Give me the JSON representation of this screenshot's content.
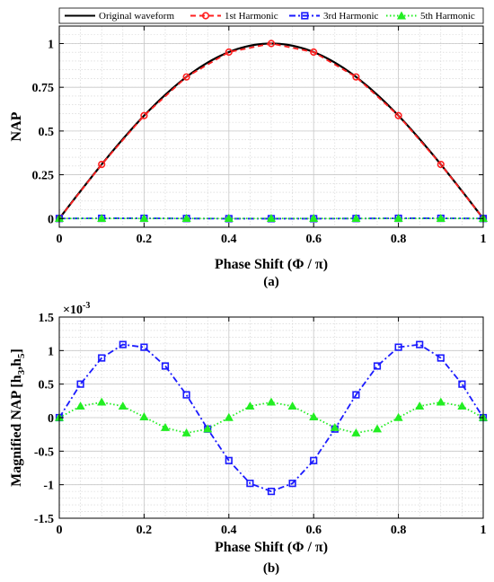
{
  "chart_data": [
    {
      "id": "a",
      "type": "line",
      "panel_label": "(a)",
      "xlabel": "Phase Shift (Φ / π)",
      "ylabel": "NAP",
      "xlim": [
        0,
        1
      ],
      "ylim": [
        -0.05,
        1.1
      ],
      "xticks": [
        0,
        0.2,
        0.4,
        0.6,
        0.8,
        1
      ],
      "xtick_labels": [
        "0",
        "0.2",
        "0.4",
        "0.6",
        "0.8",
        "1"
      ],
      "yticks": [
        0,
        0.25,
        0.5,
        0.75,
        1
      ],
      "ytick_labels": [
        "0",
        "0.25",
        "0.5",
        "0.75",
        "1"
      ],
      "grid": true,
      "legend": {
        "placement": "top",
        "entries": [
          "Original waveform",
          "1st Harmonic",
          "3rd Harmonic",
          "5th Harmonic"
        ]
      },
      "series": [
        {
          "name": "Original waveform",
          "color": "#000000",
          "line": "solid",
          "marker": "none",
          "x": [
            0,
            0.05,
            0.1,
            0.15,
            0.2,
            0.25,
            0.3,
            0.35,
            0.4,
            0.45,
            0.5,
            0.55,
            0.6,
            0.65,
            0.7,
            0.75,
            0.8,
            0.85,
            0.9,
            0.95,
            1
          ],
          "y": [
            0,
            0.156,
            0.309,
            0.454,
            0.588,
            0.707,
            0.809,
            0.891,
            0.951,
            0.988,
            1,
            0.988,
            0.951,
            0.891,
            0.809,
            0.707,
            0.588,
            0.454,
            0.309,
            0.156,
            0
          ]
        },
        {
          "name": "1st Harmonic",
          "color": "#ff2020",
          "line": "dashed",
          "marker": "circle",
          "x": [
            0,
            0.1,
            0.2,
            0.3,
            0.4,
            0.5,
            0.6,
            0.7,
            0.8,
            0.9,
            1
          ],
          "y": [
            0,
            0.309,
            0.588,
            0.809,
            0.951,
            1,
            0.951,
            0.809,
            0.588,
            0.309,
            0
          ]
        },
        {
          "name": "3rd Harmonic",
          "color": "#1a1aff",
          "line": "dashdot",
          "marker": "square",
          "x": [
            0,
            0.1,
            0.2,
            0.3,
            0.4,
            0.5,
            0.6,
            0.7,
            0.8,
            0.9,
            1
          ],
          "y": [
            0,
            0.001,
            0.001,
            0,
            -0.001,
            -0.001,
            -0.001,
            0,
            0.001,
            0.001,
            0
          ]
        },
        {
          "name": "5th Harmonic",
          "color": "#22ee22",
          "line": "dotted",
          "marker": "triangle",
          "x": [
            0,
            0.1,
            0.2,
            0.3,
            0.4,
            0.5,
            0.6,
            0.7,
            0.8,
            0.9,
            1
          ],
          "y": [
            0,
            0,
            0,
            0,
            0,
            0,
            0,
            0,
            0,
            0,
            0
          ]
        }
      ]
    },
    {
      "id": "b",
      "type": "line",
      "panel_label": "(b)",
      "xlabel": "Phase Shift (Φ / π)",
      "ylabel": "Magnified NAP [h3,h5]",
      "y_multiplier": "×10^-3",
      "xlim": [
        0,
        1
      ],
      "ylim": [
        -1.5,
        1.5
      ],
      "xticks": [
        0,
        0.2,
        0.4,
        0.6,
        0.8,
        1
      ],
      "xtick_labels": [
        "0",
        "0.2",
        "0.4",
        "0.6",
        "0.8",
        "1"
      ],
      "yticks": [
        -1.5,
        -1,
        -0.5,
        0,
        0.5,
        1,
        1.5
      ],
      "ytick_labels": [
        "-1.5",
        "-1",
        "-0.5",
        "0",
        "0.5",
        "1",
        "1.5"
      ],
      "grid": true,
      "series": [
        {
          "name": "3rd Harmonic",
          "color": "#1a1aff",
          "line": "dashdot",
          "marker": "square",
          "x": [
            0,
            0.05,
            0.1,
            0.15,
            0.2,
            0.25,
            0.3,
            0.35,
            0.4,
            0.45,
            0.5,
            0.55,
            0.6,
            0.65,
            0.7,
            0.75,
            0.8,
            0.85,
            0.9,
            0.95,
            1
          ],
          "y": [
            0,
            0.5,
            0.89,
            1.09,
            1.05,
            0.77,
            0.34,
            -0.17,
            -0.64,
            -0.98,
            -1.1,
            -0.98,
            -0.64,
            -0.17,
            0.34,
            0.77,
            1.05,
            1.09,
            0.89,
            0.5,
            0
          ]
        },
        {
          "name": "5th Harmonic",
          "color": "#22ee22",
          "line": "dotted",
          "marker": "triangle",
          "x": [
            0,
            0.05,
            0.1,
            0.15,
            0.2,
            0.25,
            0.3,
            0.35,
            0.4,
            0.45,
            0.5,
            0.55,
            0.6,
            0.65,
            0.7,
            0.75,
            0.8,
            0.85,
            0.9,
            0.95,
            1
          ],
          "y": [
            0,
            0.17,
            0.23,
            0.17,
            0.01,
            -0.15,
            -0.23,
            -0.17,
            0,
            0.17,
            0.23,
            0.17,
            0.01,
            -0.15,
            -0.23,
            -0.17,
            0,
            0.17,
            0.23,
            0.17,
            0
          ]
        }
      ]
    }
  ],
  "legend_labels": {
    "original": "Original waveform",
    "h1": "1st Harmonic",
    "h3": "3rd Harmonic",
    "h5": "5th Harmonic"
  },
  "panel_a": {
    "label": "(a)",
    "xlabel": "Phase Shift (Φ / π)",
    "ylabel": "NAP"
  },
  "panel_b": {
    "label": "(b)",
    "xlabel": "Phase Shift (Φ / π)",
    "ylabel_main": "Magnified NAP [h",
    "ylabel_sub1": "3",
    "ylabel_sep": ",h",
    "ylabel_sub2": "5",
    "ylabel_end": "]",
    "multiplier_base": "×10",
    "multiplier_exp": "-3"
  }
}
